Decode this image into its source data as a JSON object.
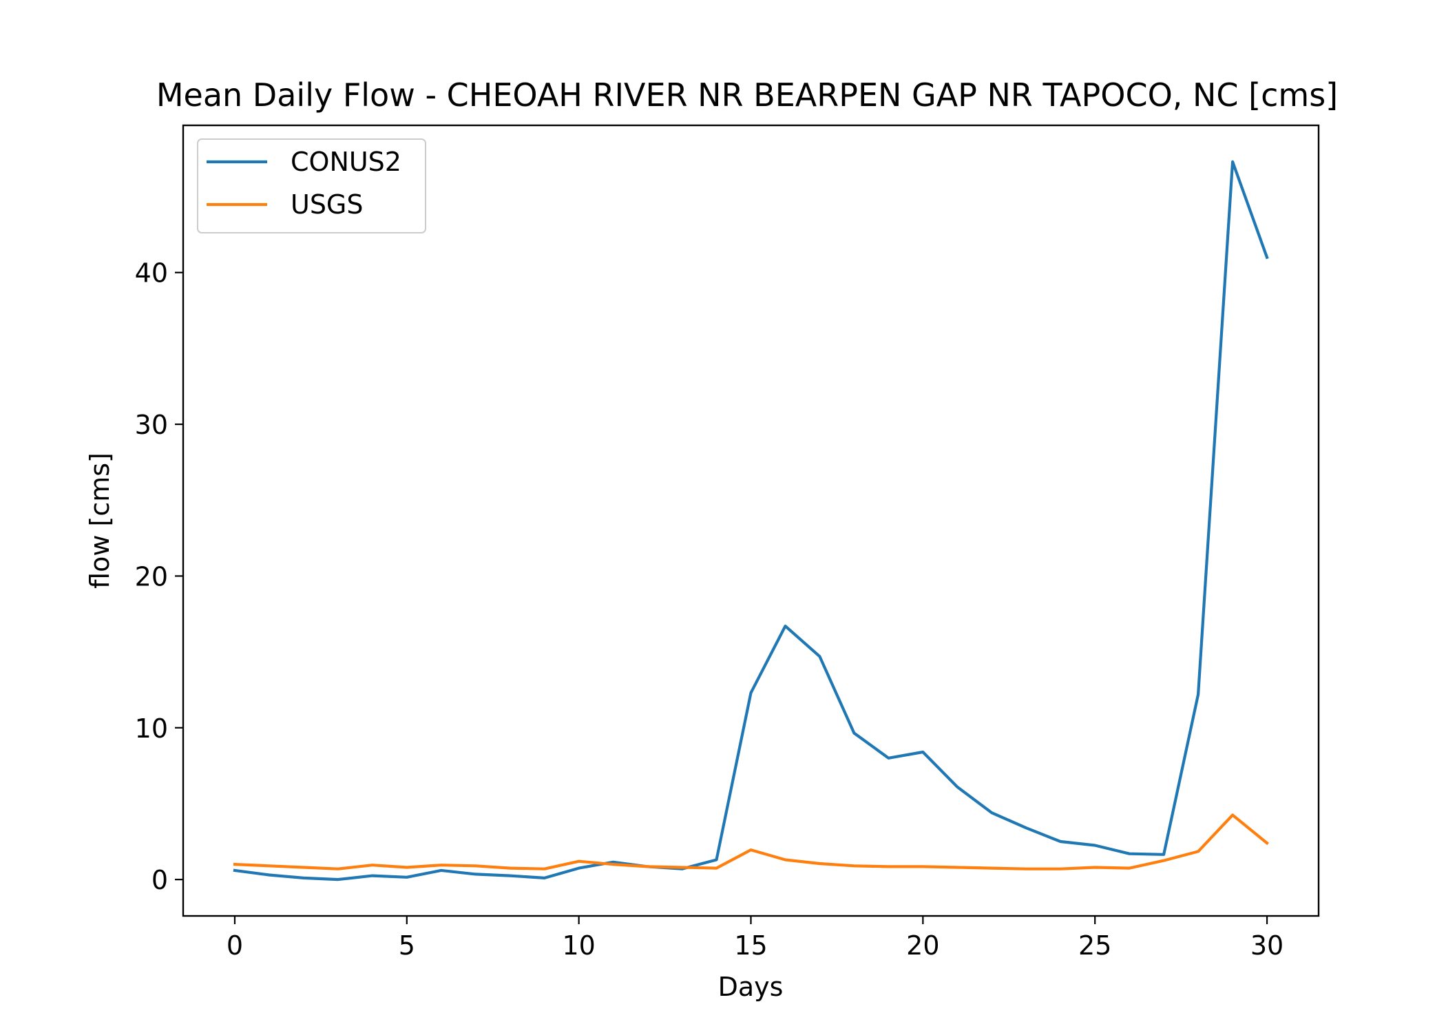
{
  "chart_data": {
    "type": "line",
    "title": "Mean Daily Flow - CHEOAH RIVER NR BEARPEN GAP NR TAPOCO, NC [cms]",
    "xlabel": "Days",
    "ylabel": "flow [cms]",
    "xlim": [
      -1.5,
      31.5
    ],
    "ylim": [
      -2.4,
      49.7
    ],
    "xticks": [
      0,
      5,
      10,
      15,
      20,
      25,
      30
    ],
    "yticks": [
      0,
      10,
      20,
      30,
      40
    ],
    "grid": false,
    "legend": "top-left",
    "x": [
      0,
      1,
      2,
      3,
      4,
      5,
      6,
      7,
      8,
      9,
      10,
      11,
      12,
      13,
      14,
      15,
      16,
      17,
      18,
      19,
      20,
      21,
      22,
      23,
      24,
      25,
      26,
      27,
      28,
      29,
      30
    ],
    "series": [
      {
        "name": "CONUS2",
        "color": "#1f77b4",
        "values": [
          0.6,
          0.3,
          0.1,
          0.0,
          0.25,
          0.15,
          0.6,
          0.35,
          0.25,
          0.1,
          0.75,
          1.15,
          0.85,
          0.7,
          1.3,
          12.3,
          16.7,
          14.7,
          9.65,
          8.0,
          8.4,
          6.1,
          4.4,
          3.4,
          2.5,
          2.25,
          1.7,
          1.65,
          12.2,
          47.3,
          41.0
        ]
      },
      {
        "name": "USGS",
        "color": "#ff7f0e",
        "values": [
          1.0,
          0.9,
          0.8,
          0.7,
          0.95,
          0.8,
          0.95,
          0.9,
          0.75,
          0.7,
          1.2,
          1.0,
          0.85,
          0.8,
          0.75,
          1.95,
          1.3,
          1.05,
          0.9,
          0.85,
          0.85,
          0.8,
          0.75,
          0.7,
          0.7,
          0.8,
          0.75,
          1.25,
          1.85,
          4.25,
          2.4
        ]
      }
    ]
  }
}
